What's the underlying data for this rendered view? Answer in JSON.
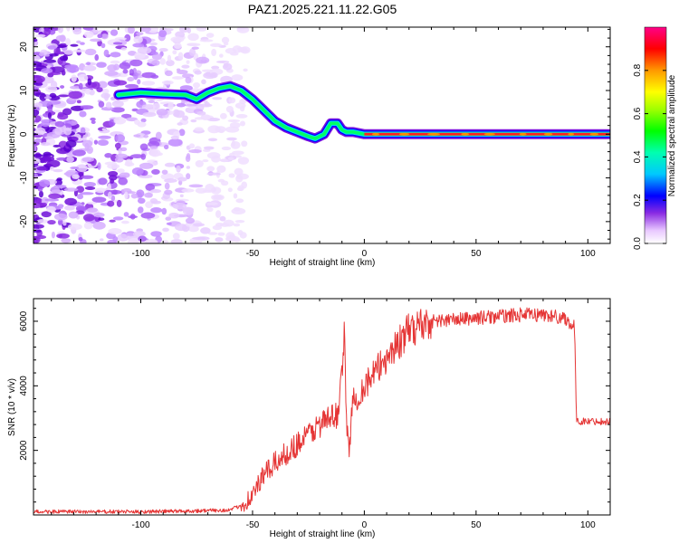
{
  "figure": {
    "title": "PAZ1.2025.221.11.22.G05"
  },
  "chart_data": [
    {
      "type": "heatmap",
      "xlabel": "Height of straight line (km)",
      "ylabel": "Frequency (Hz)",
      "xlim": [
        -148,
        110
      ],
      "ylim": [
        -25,
        24.5
      ],
      "xticks": [
        -100,
        -50,
        0,
        50,
        100
      ],
      "yticks": [
        -20,
        -10,
        0,
        10,
        20
      ],
      "colorbar": {
        "label": "Normalized spectral amplitude",
        "range": [
          0,
          1
        ],
        "ticks": [
          0.0,
          0.2,
          0.4,
          0.6,
          0.8
        ]
      },
      "ridge": {
        "x": [
          -110,
          -100,
          -90,
          -80,
          -75,
          -70,
          -65,
          -60,
          -55,
          -50,
          -45,
          -40,
          -35,
          -30,
          -25,
          -22,
          -18,
          -15,
          -12,
          -10,
          -8,
          -5,
          0,
          10,
          50,
          100,
          110
        ],
        "y": [
          9,
          9.5,
          9.2,
          9,
          8,
          9.5,
          10.5,
          11,
          10,
          8,
          5.5,
          3,
          1.5,
          0.5,
          -0.5,
          -1,
          0,
          2.5,
          2.5,
          1,
          0.5,
          0.5,
          0,
          0,
          0,
          0,
          0
        ]
      },
      "noise_region": {
        "x_range": [
          -148,
          -57
        ],
        "y_range": [
          -25,
          24.5
        ]
      }
    },
    {
      "type": "line",
      "xlabel": "Height of straight line (km)",
      "ylabel": "SNR (10 * v/v)",
      "xlim": [
        -148,
        110
      ],
      "ylim": [
        0,
        6700
      ],
      "xticks": [
        -100,
        -50,
        0,
        50,
        100
      ],
      "yticks": [
        2000,
        4000,
        6000
      ],
      "color": "#e53535",
      "series": [
        {
          "x": [
            -148,
            -120,
            -100,
            -80,
            -60,
            -55,
            -50,
            -47,
            -44,
            -40,
            -35,
            -30,
            -25,
            -20,
            -15,
            -12,
            -10,
            -9,
            -8,
            -7,
            -5,
            -2,
            0,
            5,
            10,
            15,
            20,
            25,
            30,
            40,
            50,
            60,
            70,
            80,
            90,
            94,
            95,
            100,
            110
          ],
          "y": [
            100,
            100,
            100,
            120,
            150,
            300,
            600,
            1000,
            1300,
            1600,
            1900,
            2200,
            2500,
            2800,
            3000,
            3100,
            4500,
            5600,
            3000,
            2000,
            3500,
            3800,
            4000,
            4400,
            4900,
            5300,
            5700,
            5900,
            6000,
            6050,
            6100,
            6150,
            6200,
            6200,
            6100,
            5800,
            2900,
            2900,
            2900
          ]
        }
      ]
    }
  ]
}
